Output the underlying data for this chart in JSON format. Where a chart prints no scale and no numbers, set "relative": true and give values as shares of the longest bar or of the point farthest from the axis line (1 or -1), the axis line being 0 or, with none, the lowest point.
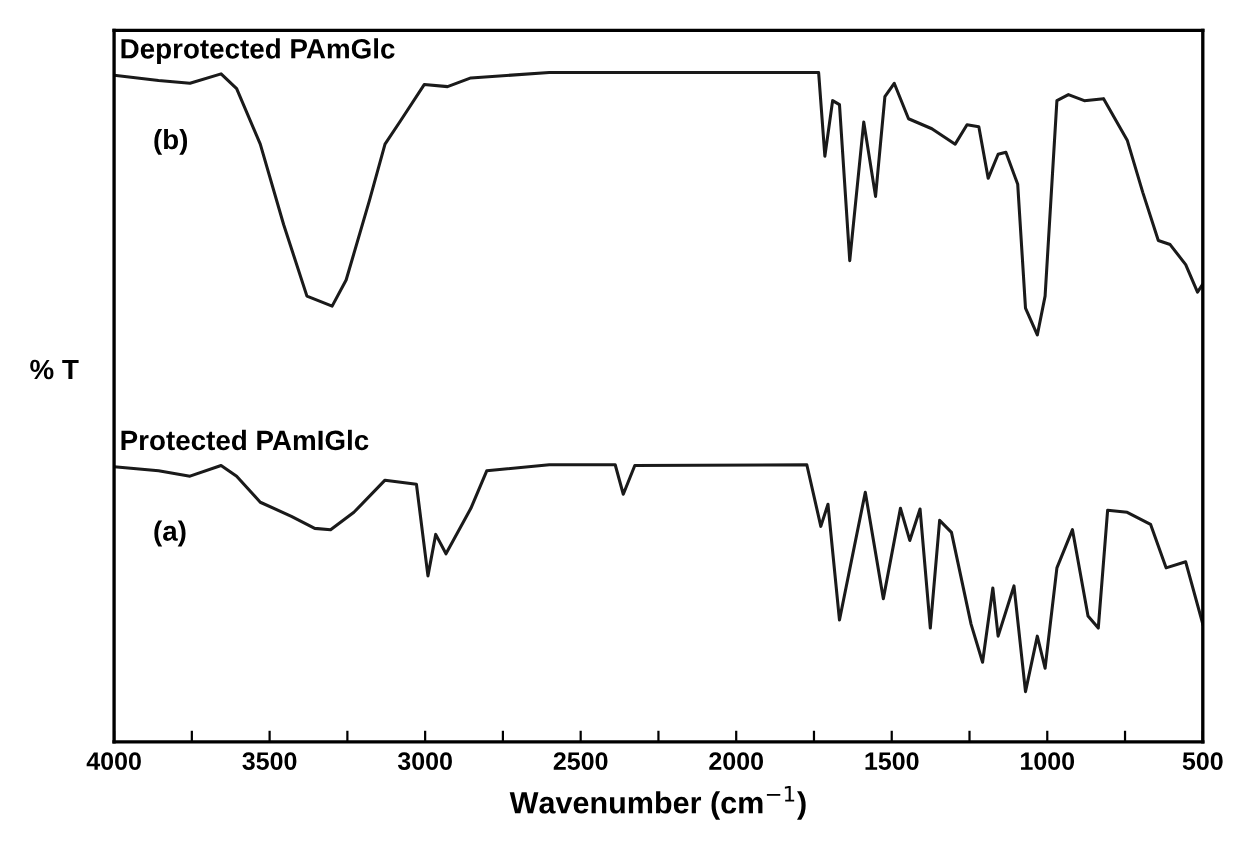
{
  "chart_data": {
    "type": "line",
    "relative": true,
    "xlabel": "Wavenumber (cm$^{−1}$)",
    "ylabel": "% T",
    "xlim": [
      4000,
      500
    ],
    "xticks": [
      4000,
      {
        "value": 3750,
        "label": null
      },
      3500,
      {
        "value": 3250,
        "label": null
      },
      3000,
      {
        "value": 2750,
        "label": null
      },
      2500,
      {
        "value": 2250,
        "label": null
      },
      2000,
      {
        "value": 1750,
        "label": null
      },
      1500,
      {
        "value": 1250,
        "label": null
      },
      1000,
      {
        "value": 750,
        "label": null
      },
      500
    ],
    "tick_labels": "x",
    "grid": false,
    "legend": false,
    "marker": "none",
    "line_style": "solid",
    "annotations": [
      "(b)",
      "(a)"
    ],
    "series": [
      {
        "name": "Deprotected PAmGlc",
        "color": "#1a1a1a",
        "x": [
          4000,
          3857,
          3756,
          3656,
          3606,
          3530,
          3455,
          3380,
          3299,
          3254,
          3179,
          3129,
          3079,
          3003,
          2928,
          2853,
          2601,
          1735,
          1715,
          1690,
          1668,
          1635,
          1590,
          1552,
          1522,
          1492,
          1446,
          1371,
          1296,
          1258,
          1220,
          1190,
          1158,
          1133,
          1095,
          1070,
          1032,
          1007,
          969,
          932,
          881,
          819,
          743,
          693,
          643,
          605,
          555,
          517,
          500
        ],
        "values": [
          0.996,
          0.988,
          0.984,
          0.998,
          0.976,
          0.893,
          0.773,
          0.666,
          0.651,
          0.69,
          0.809,
          0.893,
          0.928,
          0.982,
          0.979,
          0.992,
          1.0,
          1.0,
          0.875,
          0.958,
          0.952,
          0.719,
          0.926,
          0.815,
          0.964,
          0.984,
          0.931,
          0.916,
          0.893,
          0.922,
          0.919,
          0.842,
          0.878,
          0.881,
          0.833,
          0.648,
          0.608,
          0.666,
          0.958,
          0.967,
          0.958,
          0.961,
          0.899,
          0.821,
          0.749,
          0.743,
          0.713,
          0.672,
          0.684
        ]
      },
      {
        "name": "Protected PAmIGlc",
        "color": "#1a1a1a",
        "x": [
          4000,
          3857,
          3756,
          3656,
          3606,
          3530,
          3430,
          3355,
          3304,
          3229,
          3129,
          3028,
          2991,
          2966,
          2933,
          2853,
          2802,
          2601,
          2389,
          2363,
          2326,
          1773,
          1728,
          1705,
          1668,
          1585,
          1527,
          1472,
          1442,
          1409,
          1376,
          1346,
          1308,
          1245,
          1208,
          1175,
          1158,
          1107,
          1070,
          1032,
          1007,
          969,
          919,
          869,
          836,
          806,
          743,
          668,
          618,
          555,
          500
        ],
        "values": [
          0.411,
          0.405,
          0.397,
          0.413,
          0.397,
          0.358,
          0.337,
          0.319,
          0.317,
          0.343,
          0.391,
          0.385,
          0.248,
          0.31,
          0.281,
          0.349,
          0.405,
          0.414,
          0.414,
          0.37,
          0.413,
          0.414,
          0.322,
          0.355,
          0.182,
          0.373,
          0.214,
          0.349,
          0.301,
          0.348,
          0.17,
          0.331,
          0.313,
          0.176,
          0.119,
          0.23,
          0.158,
          0.233,
          0.075,
          0.158,
          0.11,
          0.26,
          0.317,
          0.188,
          0.17,
          0.346,
          0.343,
          0.325,
          0.26,
          0.269,
          0.176
        ]
      }
    ]
  }
}
